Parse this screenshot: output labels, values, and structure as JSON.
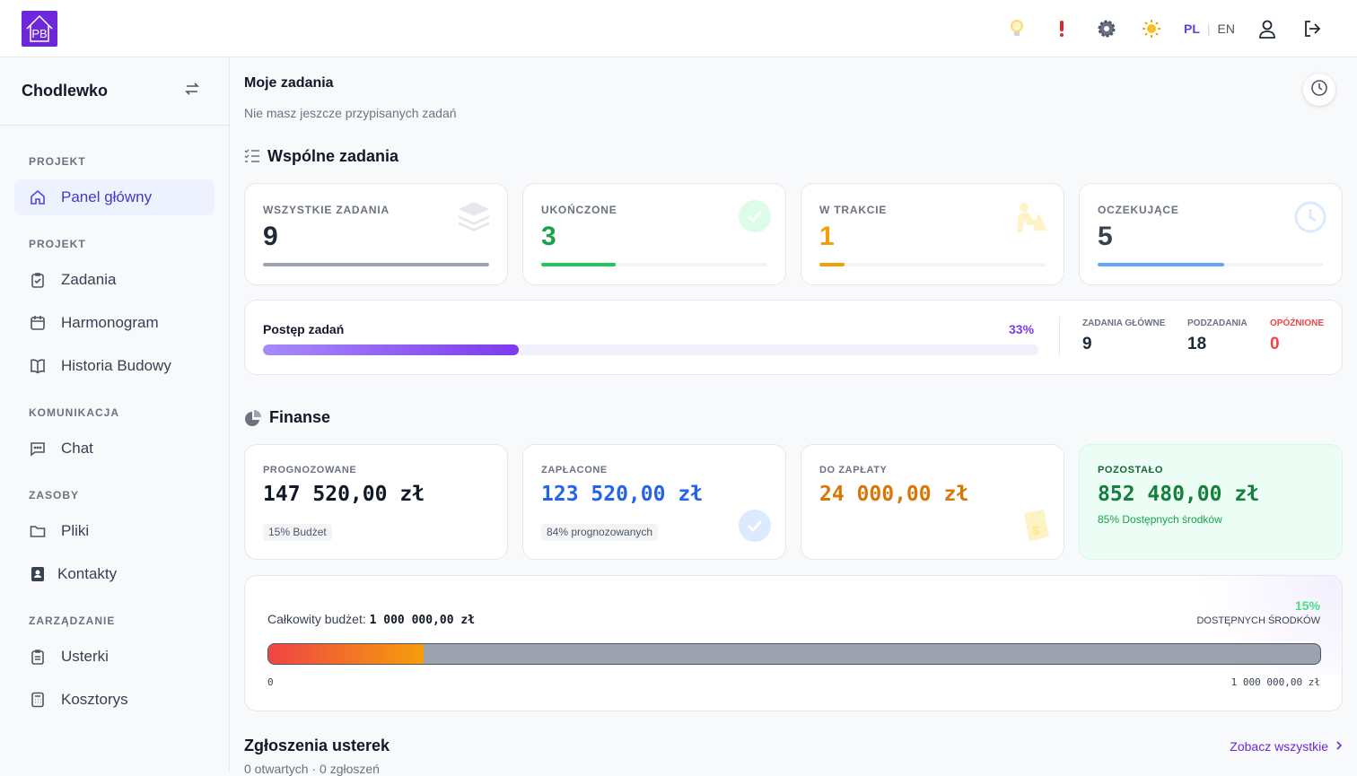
{
  "topbar": {
    "logo": "PB",
    "icons": [
      "lightbulb-icon",
      "alert-icon",
      "settings-icon",
      "theme-sun-icon"
    ],
    "lang_pl": "PL",
    "lang_en": "EN"
  },
  "sidebar": {
    "project_name": "Chodlewko",
    "sections": [
      "PROJEKT",
      "PROJEKT",
      "KOMUNIKACJA",
      "ZASOBY",
      "ZARZĄDZANIE"
    ],
    "items": [
      "Panel główny",
      "Zadania",
      "Harmonogram",
      "Historia Budowy",
      "Chat",
      "Pliki",
      "Kontakty",
      "Usterki",
      "Kosztorys"
    ]
  },
  "my_tasks": {
    "title": "Moje zadania",
    "empty": "Nie masz jeszcze przypisanych zadań"
  },
  "shared_tasks": {
    "title": "Wspólne zadania",
    "cards": [
      {
        "label": "WSZYSTKIE ZADANIA",
        "value": "9",
        "color": "#1f2937",
        "bar": "#9ca3af",
        "progress": 1.0
      },
      {
        "label": "UKOŃCZONE",
        "value": "3",
        "color": "#16a34a",
        "bar": "#22c55e",
        "progress": 0.33
      },
      {
        "label": "W TRAKCIE",
        "value": "1",
        "color": "#f59e0b",
        "bar": "#f59e0b",
        "progress": 0.11
      },
      {
        "label": "OCZEKUJĄCE",
        "value": "5",
        "color": "#374151",
        "bar": "#60a5fa",
        "progress": 0.56
      }
    ],
    "progress": {
      "label": "Postęp zadań",
      "percent": "33%",
      "value": 0.33,
      "main_label": "ZADANIA GŁÓWNE",
      "main_value": "9",
      "sub_label": "PODZADANIA",
      "sub_value": "18",
      "late_label": "OPÓŹNIONE",
      "late_value": "0"
    }
  },
  "finance": {
    "title": "Finanse",
    "cards": [
      {
        "label": "PROGNOZOWANE",
        "value": "147 520,00 zł",
        "tag": "15% Budżet"
      },
      {
        "label": "ZAPŁACONE",
        "value": "123 520,00 zł",
        "tag": "84% prognozowanych"
      },
      {
        "label": "DO ZAPŁATY",
        "value": "24 000,00 zł"
      },
      {
        "label": "POZOSTAŁO",
        "value": "852 480,00 zł",
        "note": "85% Dostępnych środków"
      }
    ],
    "budget": {
      "label": "Całkowity budżet:",
      "total": "1 000 000,00 zł",
      "percent": "15%",
      "percent_label": "DOSTĘPNYCH ŚRODKÓW",
      "min": "0",
      "max": "1 000 000,00 zł",
      "used_fraction": 0.148
    }
  },
  "defects": {
    "title": "Zgłoszenia usterek",
    "summary": "0 otwartych · 0 zgłoszeń",
    "see_all": "Zobacz wszystkie"
  }
}
